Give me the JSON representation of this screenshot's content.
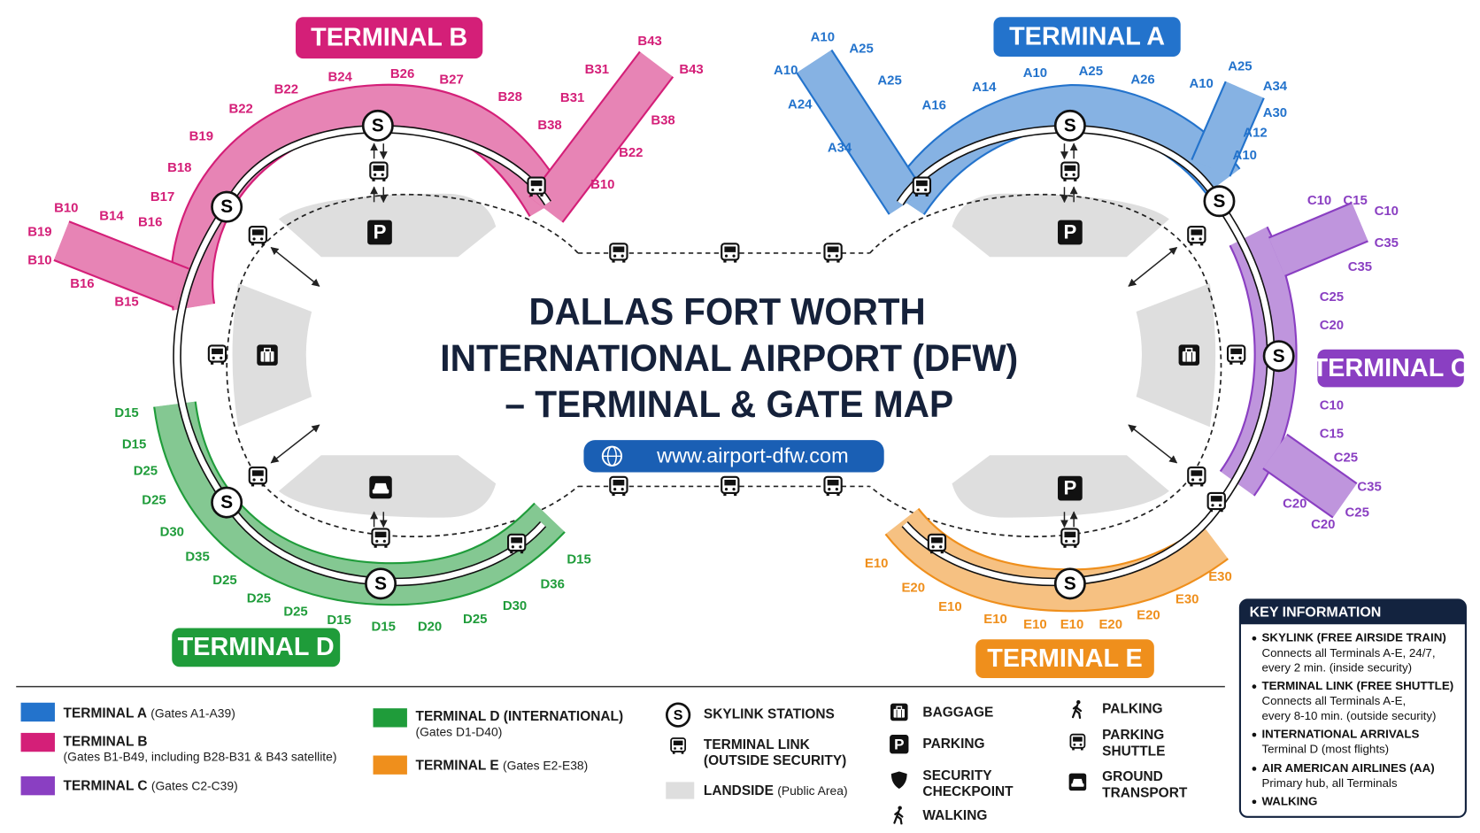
{
  "title": [
    "DALLAS FORT WORTH",
    "INTERNATIONAL AIRPORT (DFW)",
    "– TERMINAL & GATE MAP"
  ],
  "url": "www.airport-dfw.com",
  "station_symbol": "S",
  "parking_symbol": "P",
  "terminals": [
    {
      "name": "TERMINAL A",
      "color": "#2373cc",
      "gates": [
        "A10",
        "A25",
        "A10",
        "A25",
        "A24",
        "A16",
        "A14",
        "A10",
        "A25",
        "A26",
        "A10",
        "A25",
        "A34",
        "A30",
        "A12",
        "A10",
        "A34"
      ]
    },
    {
      "name": "TERMINAL B",
      "color": "#d41f78",
      "gates": [
        "B43",
        "B43",
        "B31",
        "B31",
        "B28",
        "B38",
        "B38",
        "B22",
        "B10",
        "B27",
        "B26",
        "B24",
        "B22",
        "B22",
        "B19",
        "B18",
        "B17",
        "B16",
        "B14",
        "B10",
        "B19",
        "B10",
        "B16",
        "B15"
      ]
    },
    {
      "name": "TERMINAL C",
      "color": "#8a3fc2",
      "gates": [
        "C10",
        "C15",
        "C10",
        "C35",
        "C35",
        "C25",
        "C20",
        "C10",
        "C15",
        "C25",
        "C35",
        "C20",
        "C25",
        "C20"
      ]
    },
    {
      "name": "TERMINAL D",
      "color": "#1f9c3a",
      "gates": [
        "D15",
        "D15",
        "D25",
        "D25",
        "D30",
        "D35",
        "D25",
        "D25",
        "D25",
        "D15",
        "D15",
        "D20",
        "D25",
        "D30",
        "D36",
        "D15"
      ]
    },
    {
      "name": "TERMINAL E",
      "color": "#ef8f1c",
      "gates": [
        "E10",
        "E20",
        "E10",
        "E10",
        "E10",
        "E10",
        "E20",
        "E20",
        "E30",
        "E30"
      ]
    }
  ],
  "legend": {
    "terminals": [
      {
        "name": "TERMINAL A",
        "detail": "(Gates A1-A39)"
      },
      {
        "name": "TERMINAL B",
        "detail": "(Gates B1-B49, including B28-B31 & B43 satellite)"
      },
      {
        "name": "TERMINAL C",
        "detail": "(Gates C2-C39)"
      },
      {
        "name": "TERMINAL D (INTERNATIONAL)",
        "detail": "(Gates D1-D40)"
      },
      {
        "name": "TERMINAL E",
        "detail": "(Gates E2-E38)"
      }
    ],
    "symbols": [
      {
        "lines": [
          "SKYLINK STATIONS"
        ]
      },
      {
        "lines": [
          "TERMINAL LINK",
          "(OUTSIDE SECURITY)"
        ]
      },
      {
        "lines": [
          "LANDSIDE"
        ],
        "note": "(Public Area)"
      },
      {
        "lines": [
          "BAGGAGE"
        ]
      },
      {
        "lines": [
          "PARKING"
        ]
      },
      {
        "lines": [
          "SECURITY",
          "CHECKPOINT"
        ]
      },
      {
        "lines": [
          "WALKING"
        ]
      },
      {
        "lines": [
          "PALKING"
        ]
      },
      {
        "lines": [
          "PARKING",
          "SHUTTLE"
        ]
      },
      {
        "lines": [
          "GROUND",
          "TRANSPORT"
        ]
      }
    ]
  },
  "key_information": {
    "title": "KEY INFORMATION",
    "items": [
      {
        "heading": "SKYLINK (FREE AIRSIDE TRAIN)",
        "lines": [
          "Connects all Terminals A-E, 24/7,",
          "every 2 min. (inside security)"
        ]
      },
      {
        "heading": "TERMINAL LINK (FREE SHUTTLE)",
        "lines": [
          "Connects all Terminals A-E,",
          "every 8-10 min. (outside security)"
        ]
      },
      {
        "heading": "INTERNATIONAL ARRIVALS",
        "lines": [
          "Terminal D (most flights)"
        ]
      },
      {
        "heading": "AIR AMERICAN AIRLINES (AA)",
        "lines": [
          "Primary hub, all Terminals"
        ]
      },
      {
        "heading": "WALKING",
        "lines": []
      }
    ]
  }
}
